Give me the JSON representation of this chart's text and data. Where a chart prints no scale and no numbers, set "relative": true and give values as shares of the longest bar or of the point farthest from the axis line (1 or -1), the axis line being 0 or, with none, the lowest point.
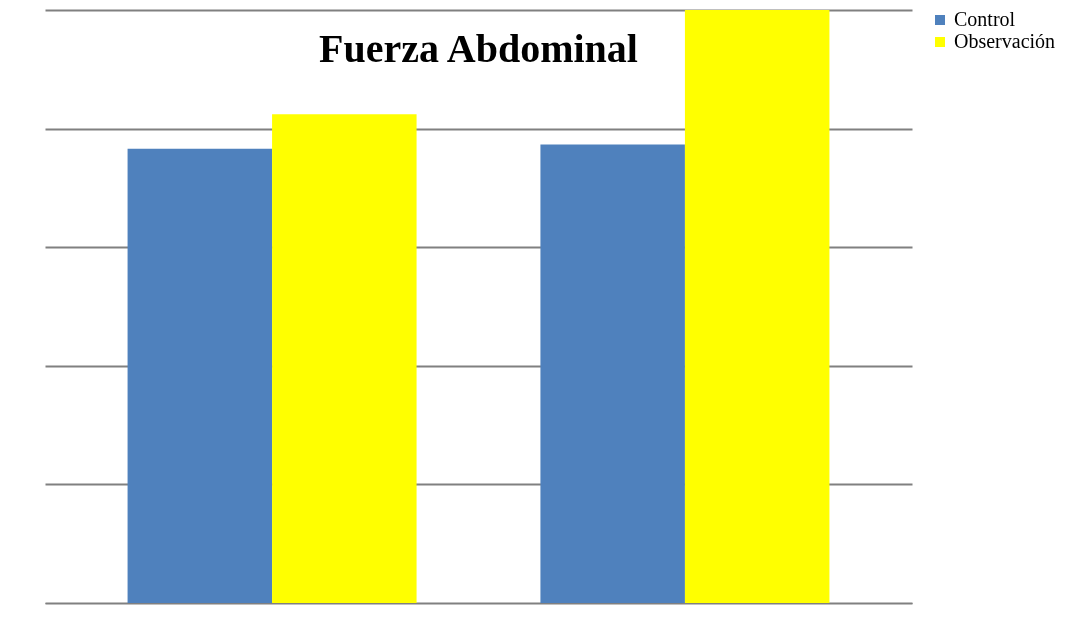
{
  "chart_data": {
    "type": "bar",
    "title": "Fuerza Abdominal",
    "relative": true,
    "categories": [
      null,
      null
    ],
    "series": [
      {
        "name": "Control",
        "color": "#4f81bd",
        "values": [
          0.766,
          0.773
        ]
      },
      {
        "name": "Observación",
        "color": "#ffff00",
        "values": [
          0.824,
          1
        ]
      }
    ],
    "grid": "y",
    "legend": "right"
  }
}
